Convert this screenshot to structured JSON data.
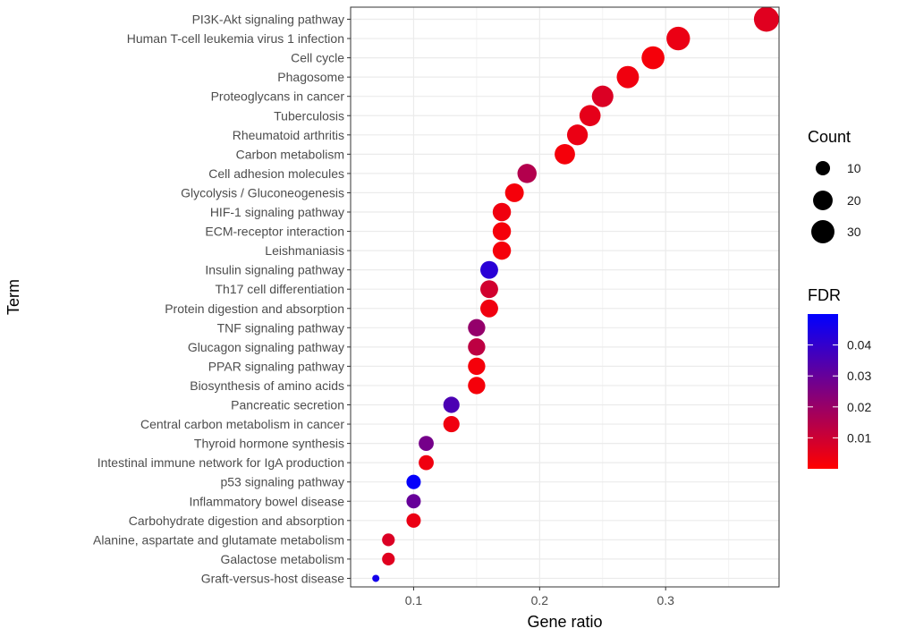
{
  "chart_data": {
    "type": "scatter",
    "xlabel": "Gene ratio",
    "ylabel": "Term",
    "xlim": [
      0.05,
      0.39
    ],
    "x_ticks": [
      0.1,
      0.2,
      0.3
    ],
    "x_tick_labels": [
      "0.1",
      "0.2",
      "0.3"
    ],
    "grid": true,
    "points": [
      {
        "term": "PI3K-Akt signaling pathway",
        "x": 0.38,
        "count": 36,
        "fdr": 0.006
      },
      {
        "term": "Human T-cell leukemia virus 1 infection",
        "x": 0.31,
        "count": 31,
        "fdr": 0.004
      },
      {
        "term": "Cell cycle",
        "x": 0.29,
        "count": 29,
        "fdr": 0.002
      },
      {
        "term": "Phagosome",
        "x": 0.27,
        "count": 27,
        "fdr": 0.003
      },
      {
        "term": "Proteoglycans in cancer",
        "x": 0.25,
        "count": 25,
        "fdr": 0.007
      },
      {
        "term": "Tuberculosis",
        "x": 0.24,
        "count": 24,
        "fdr": 0.005
      },
      {
        "term": "Rheumatoid arthritis",
        "x": 0.23,
        "count": 23,
        "fdr": 0.004
      },
      {
        "term": "Carbon metabolism",
        "x": 0.22,
        "count": 22,
        "fdr": 0.002
      },
      {
        "term": "Cell adhesion molecules",
        "x": 0.19,
        "count": 19,
        "fdr": 0.015
      },
      {
        "term": "Glycolysis / Gluconeogenesis",
        "x": 0.18,
        "count": 18,
        "fdr": 0.002
      },
      {
        "term": "HIF-1 signaling pathway",
        "x": 0.17,
        "count": 17,
        "fdr": 0.003
      },
      {
        "term": "ECM-receptor interaction",
        "x": 0.17,
        "count": 17,
        "fdr": 0.002
      },
      {
        "term": "Leishmaniasis",
        "x": 0.17,
        "count": 17,
        "fdr": 0.002
      },
      {
        "term": "Insulin signaling pathway",
        "x": 0.16,
        "count": 16,
        "fdr": 0.042
      },
      {
        "term": "Th17 cell differentiation",
        "x": 0.16,
        "count": 16,
        "fdr": 0.009
      },
      {
        "term": "Protein digestion and absorption",
        "x": 0.16,
        "count": 16,
        "fdr": 0.003
      },
      {
        "term": "TNF signaling pathway",
        "x": 0.15,
        "count": 15,
        "fdr": 0.021
      },
      {
        "term": "Glucagon signaling pathway",
        "x": 0.15,
        "count": 15,
        "fdr": 0.013
      },
      {
        "term": "PPAR signaling pathway",
        "x": 0.15,
        "count": 15,
        "fdr": 0.002
      },
      {
        "term": "Biosynthesis of amino acids",
        "x": 0.15,
        "count": 15,
        "fdr": 0.002
      },
      {
        "term": "Pancreatic secretion",
        "x": 0.13,
        "count": 13,
        "fdr": 0.035
      },
      {
        "term": "Central carbon metabolism in cancer",
        "x": 0.13,
        "count": 13,
        "fdr": 0.003
      },
      {
        "term": "Thyroid hormone synthesis",
        "x": 0.11,
        "count": 11,
        "fdr": 0.027
      },
      {
        "term": "Intestinal immune network for IgA production",
        "x": 0.11,
        "count": 11,
        "fdr": 0.003
      },
      {
        "term": "p53 signaling pathway",
        "x": 0.1,
        "count": 10,
        "fdr": 0.049
      },
      {
        "term": "Inflammatory bowel disease",
        "x": 0.1,
        "count": 10,
        "fdr": 0.03
      },
      {
        "term": "Carbohydrate digestion and absorption",
        "x": 0.1,
        "count": 10,
        "fdr": 0.004
      },
      {
        "term": "Alanine, aspartate and glutamate metabolism",
        "x": 0.08,
        "count": 8,
        "fdr": 0.007
      },
      {
        "term": "Galactose metabolism",
        "x": 0.08,
        "count": 8,
        "fdr": 0.006
      },
      {
        "term": "Graft-versus-host disease",
        "x": 0.07,
        "count": 5,
        "fdr": 0.046
      }
    ],
    "size_legend": {
      "title": "Count",
      "values": [
        10,
        20,
        30
      ],
      "labels": [
        "10",
        "20",
        "30"
      ]
    },
    "color_legend": {
      "title": "FDR",
      "range": [
        0.0,
        0.05
      ],
      "low_color": "#ff0000",
      "high_color": "#0000ff",
      "tick_values": [
        0.01,
        0.02,
        0.03,
        0.04
      ],
      "tick_labels": [
        "0.01",
        "0.02",
        "0.03",
        "0.04"
      ]
    }
  }
}
